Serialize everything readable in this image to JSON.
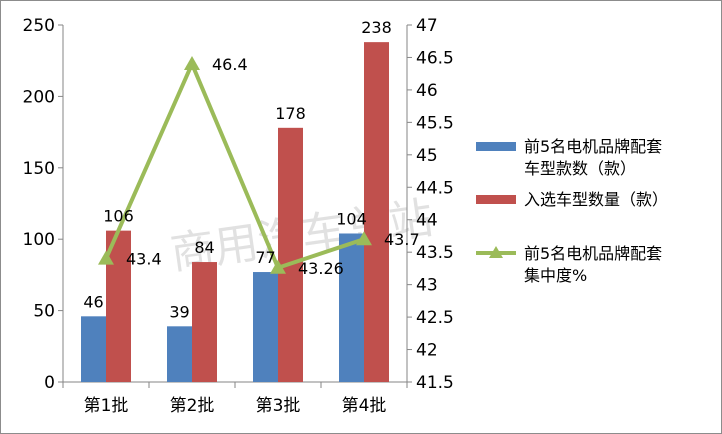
{
  "chart_data": {
    "type": "bar",
    "categories": [
      "第1批",
      "第2批",
      "第3批",
      "第4批"
    ],
    "series": [
      {
        "name": "前5名电机品牌配套车型款数（款）",
        "legend_lines": [
          "前5名电机品牌配套",
          "车型款数（款）"
        ],
        "kind": "bar",
        "axis": "left",
        "color": "#4f81bd",
        "values": [
          46,
          39,
          77,
          104
        ]
      },
      {
        "name": "入选车型数量（款）",
        "legend_lines": [
          "入选车型数量（款）"
        ],
        "kind": "bar",
        "axis": "left",
        "color": "#c0504d",
        "values": [
          106,
          84,
          178,
          238
        ]
      },
      {
        "name": "前5名电机品牌配套集中度%",
        "legend_lines": [
          "前5名电机品牌配套",
          "集中度%"
        ],
        "kind": "line",
        "axis": "right",
        "color": "#9bbb59",
        "values": [
          43.4,
          46.4,
          43.26,
          43.7
        ]
      }
    ],
    "y_left": {
      "ylim": [
        0,
        250
      ],
      "ticks": [
        0,
        50,
        100,
        150,
        200,
        250
      ]
    },
    "y_right": {
      "ylim": [
        41.5,
        47
      ],
      "ticks": [
        "41.5",
        "42",
        "42.5",
        "43",
        "43.5",
        "44",
        "44.5",
        "45",
        "45.5",
        "46",
        "46.5",
        "47"
      ]
    },
    "legend_position": "right",
    "grid": false
  },
  "watermark": "商用汽车总站"
}
